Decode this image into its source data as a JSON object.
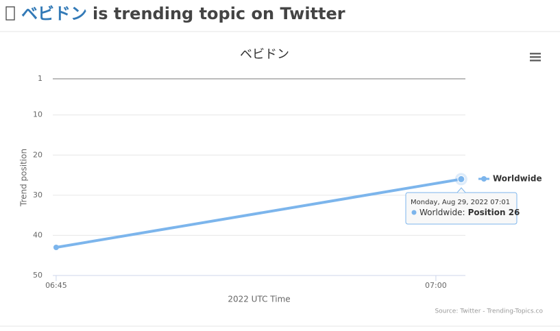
{
  "header": {
    "topic": "ベビドン",
    "suffix": "is trending topic on Twitter"
  },
  "chart_data": {
    "type": "line",
    "title": "ベビドン",
    "x_label": "2022 UTC Time",
    "y_label": "Trend position",
    "x": [
      "2022-08-29 06:45",
      "2022-08-29 07:01"
    ],
    "series": [
      {
        "name": "Worldwide",
        "color": "#7cb5ec",
        "values": [
          43,
          26
        ]
      }
    ],
    "xlim": [
      "2022-08-29 06:44:52",
      "2022-08-29 07:01:10"
    ],
    "xticks": [
      {
        "value": "2022-08-29 06:45",
        "label": "06:45"
      },
      {
        "value": "2022-08-29 07:00",
        "label": "07:00"
      }
    ],
    "ylim": [
      1,
      50
    ],
    "y_reversed": true,
    "yticks": [
      1,
      10,
      20,
      30,
      40,
      50
    ],
    "grid": true,
    "legend": "right",
    "tooltip": {
      "date": "Monday, Aug 29, 2022 07:01",
      "series": "Worldwide:",
      "value": "Position 26"
    },
    "credits": "Source: Twitter - Trending-Topics.co"
  }
}
